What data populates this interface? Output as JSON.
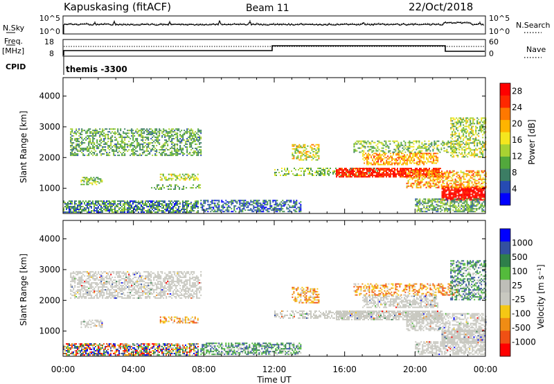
{
  "header": {
    "station": "Kapuskasing (fitACF)",
    "beam": "Beam 11",
    "date": "22/Oct/2018"
  },
  "top_panels": {
    "nsky_label": "N.Sky",
    "nsky_ticks": [
      "10^5",
      "10^0"
    ],
    "nsearch_label": "N.Search",
    "nsearch_ticks": [
      "10^5",
      "10^0"
    ],
    "freq_label_1": "Freq.",
    "freq_label_2": "[MHz]",
    "freq_ticks": [
      "18",
      "8"
    ],
    "nave_label": "Nave",
    "nave_ticks": [
      "60",
      "0"
    ],
    "cpid_label": "CPID",
    "cpid_value": "themis -3300"
  },
  "colors": {
    "power_scale": [
      "#0000ff",
      "#264bb3",
      "#3c7d64",
      "#52a83c",
      "#a8d232",
      "#f5e61e",
      "#ffb400",
      "#ff7800",
      "#ff2800",
      "#ff0000"
    ],
    "velocity_scale": [
      "#0000ff",
      "#3350a0",
      "#2e7f4a",
      "#54bb3c",
      "#bebeb8",
      "#c8c8c0",
      "#f5c814",
      "#f08c14",
      "#f05014",
      "#ff0000"
    ],
    "ground_scatter": "#c8c8c0"
  },
  "chart_data": [
    {
      "type": "heatmap",
      "name": "power",
      "xlabel": "",
      "ylabel": "Slant Range [km]",
      "xlim_hours": [
        0,
        24
      ],
      "ylim": [
        180,
        4600
      ],
      "x_ticks": [
        "00:00",
        "04:00",
        "08:00",
        "12:00",
        "16:00",
        "20:00",
        "00:00"
      ],
      "y_ticks": [
        1000,
        2000,
        3000,
        4000
      ],
      "colorbar": {
        "label": "Power [dB]",
        "ticks": [
          "4",
          "8",
          "12",
          "16",
          "20",
          "24",
          "28"
        ],
        "range": [
          0,
          30
        ]
      },
      "echo_regions": [
        {
          "t0": 0.0,
          "t1": 7.7,
          "r0": 200,
          "r1": 600,
          "value": 8,
          "spread": 6,
          "density": 0.7
        },
        {
          "t0": 0.4,
          "t1": 7.8,
          "r0": 2050,
          "r1": 2950,
          "value": 10,
          "spread": 5,
          "density": 0.5
        },
        {
          "t0": 1.0,
          "t1": 2.2,
          "r0": 1100,
          "r1": 1350,
          "value": 12,
          "spread": 5,
          "density": 0.5
        },
        {
          "t0": 5.5,
          "t1": 7.7,
          "r0": 1250,
          "r1": 1450,
          "value": 14,
          "spread": 5,
          "density": 0.55
        },
        {
          "t0": 5.0,
          "t1": 7.8,
          "r0": 950,
          "r1": 1100,
          "value": 10,
          "spread": 4,
          "density": 0.35
        },
        {
          "t0": 7.8,
          "t1": 13.5,
          "r0": 220,
          "r1": 600,
          "value": 6,
          "spread": 5,
          "density": 0.55
        },
        {
          "t0": 13.0,
          "t1": 14.5,
          "r0": 1900,
          "r1": 2400,
          "value": 16,
          "spread": 6,
          "density": 0.5
        },
        {
          "t0": 12.0,
          "t1": 18.0,
          "r0": 1400,
          "r1": 1650,
          "value": 12,
          "spread": 5,
          "density": 0.35
        },
        {
          "t0": 15.5,
          "t1": 21.5,
          "r0": 1350,
          "r1": 1650,
          "value": 26,
          "spread": 3,
          "density": 0.8
        },
        {
          "t0": 17.0,
          "t1": 21.3,
          "r0": 1750,
          "r1": 2150,
          "value": 20,
          "spread": 5,
          "density": 0.6
        },
        {
          "t0": 16.5,
          "t1": 22.5,
          "r0": 2150,
          "r1": 2550,
          "value": 12,
          "spread": 5,
          "density": 0.45
        },
        {
          "t0": 21.5,
          "t1": 24.0,
          "r0": 600,
          "r1": 1050,
          "value": 28,
          "spread": 2,
          "density": 0.85
        },
        {
          "t0": 19.5,
          "t1": 24.0,
          "r0": 1000,
          "r1": 1550,
          "value": 20,
          "spread": 6,
          "density": 0.55
        },
        {
          "t0": 22.0,
          "t1": 24.0,
          "r0": 2000,
          "r1": 3300,
          "value": 14,
          "spread": 6,
          "density": 0.5
        },
        {
          "t0": 20.0,
          "t1": 24.0,
          "r0": 220,
          "r1": 650,
          "value": 10,
          "spread": 5,
          "density": 0.6
        }
      ]
    },
    {
      "type": "heatmap",
      "name": "velocity",
      "xlabel": "Time UT",
      "ylabel": "Slant Range [km]",
      "xlim_hours": [
        0,
        24
      ],
      "ylim": [
        180,
        4600
      ],
      "x_ticks": [
        "00:00",
        "04:00",
        "08:00",
        "12:00",
        "16:00",
        "20:00",
        "00:00"
      ],
      "y_ticks": [
        1000,
        2000,
        3000,
        4000
      ],
      "colorbar": {
        "label": "Velocity [m s⁻¹]",
        "ticks": [
          "1000",
          "500",
          "100",
          "25",
          "-25",
          "-100",
          "-500",
          "-1000"
        ]
      },
      "echo_regions": [
        {
          "t0": 0.0,
          "t1": 7.7,
          "r0": 200,
          "r1": 600,
          "cls": "mixed",
          "density": 0.7
        },
        {
          "t0": 0.4,
          "t1": 7.8,
          "r0": 2050,
          "r1": 2950,
          "cls": "ground",
          "density": 0.55
        },
        {
          "t0": 1.0,
          "t1": 2.2,
          "r0": 1100,
          "r1": 1350,
          "cls": "ground",
          "density": 0.5
        },
        {
          "t0": 5.5,
          "t1": 7.7,
          "r0": 1250,
          "r1": 1450,
          "cls": "neg",
          "density": 0.55
        },
        {
          "t0": 7.8,
          "t1": 13.5,
          "r0": 220,
          "r1": 600,
          "cls": "pos",
          "density": 0.55
        },
        {
          "t0": 13.0,
          "t1": 14.5,
          "r0": 1900,
          "r1": 2400,
          "cls": "neg",
          "density": 0.55
        },
        {
          "t0": 12.0,
          "t1": 18.0,
          "r0": 1400,
          "r1": 1650,
          "cls": "ground",
          "density": 0.45
        },
        {
          "t0": 15.5,
          "t1": 21.5,
          "r0": 1350,
          "r1": 1650,
          "cls": "ground",
          "density": 0.8
        },
        {
          "t0": 17.0,
          "t1": 21.3,
          "r0": 1750,
          "r1": 2150,
          "cls": "ground",
          "density": 0.6
        },
        {
          "t0": 16.5,
          "t1": 22.5,
          "r0": 2150,
          "r1": 2550,
          "cls": "neg",
          "density": 0.45
        },
        {
          "t0": 21.5,
          "t1": 24.0,
          "r0": 600,
          "r1": 1050,
          "cls": "ground",
          "density": 0.85
        },
        {
          "t0": 19.5,
          "t1": 24.0,
          "r0": 1000,
          "r1": 1550,
          "cls": "ground",
          "density": 0.55
        },
        {
          "t0": 22.0,
          "t1": 24.0,
          "r0": 2000,
          "r1": 3300,
          "cls": "pos",
          "density": 0.5
        },
        {
          "t0": 20.0,
          "t1": 24.0,
          "r0": 220,
          "r1": 650,
          "cls": "ground",
          "density": 0.6
        }
      ]
    }
  ]
}
